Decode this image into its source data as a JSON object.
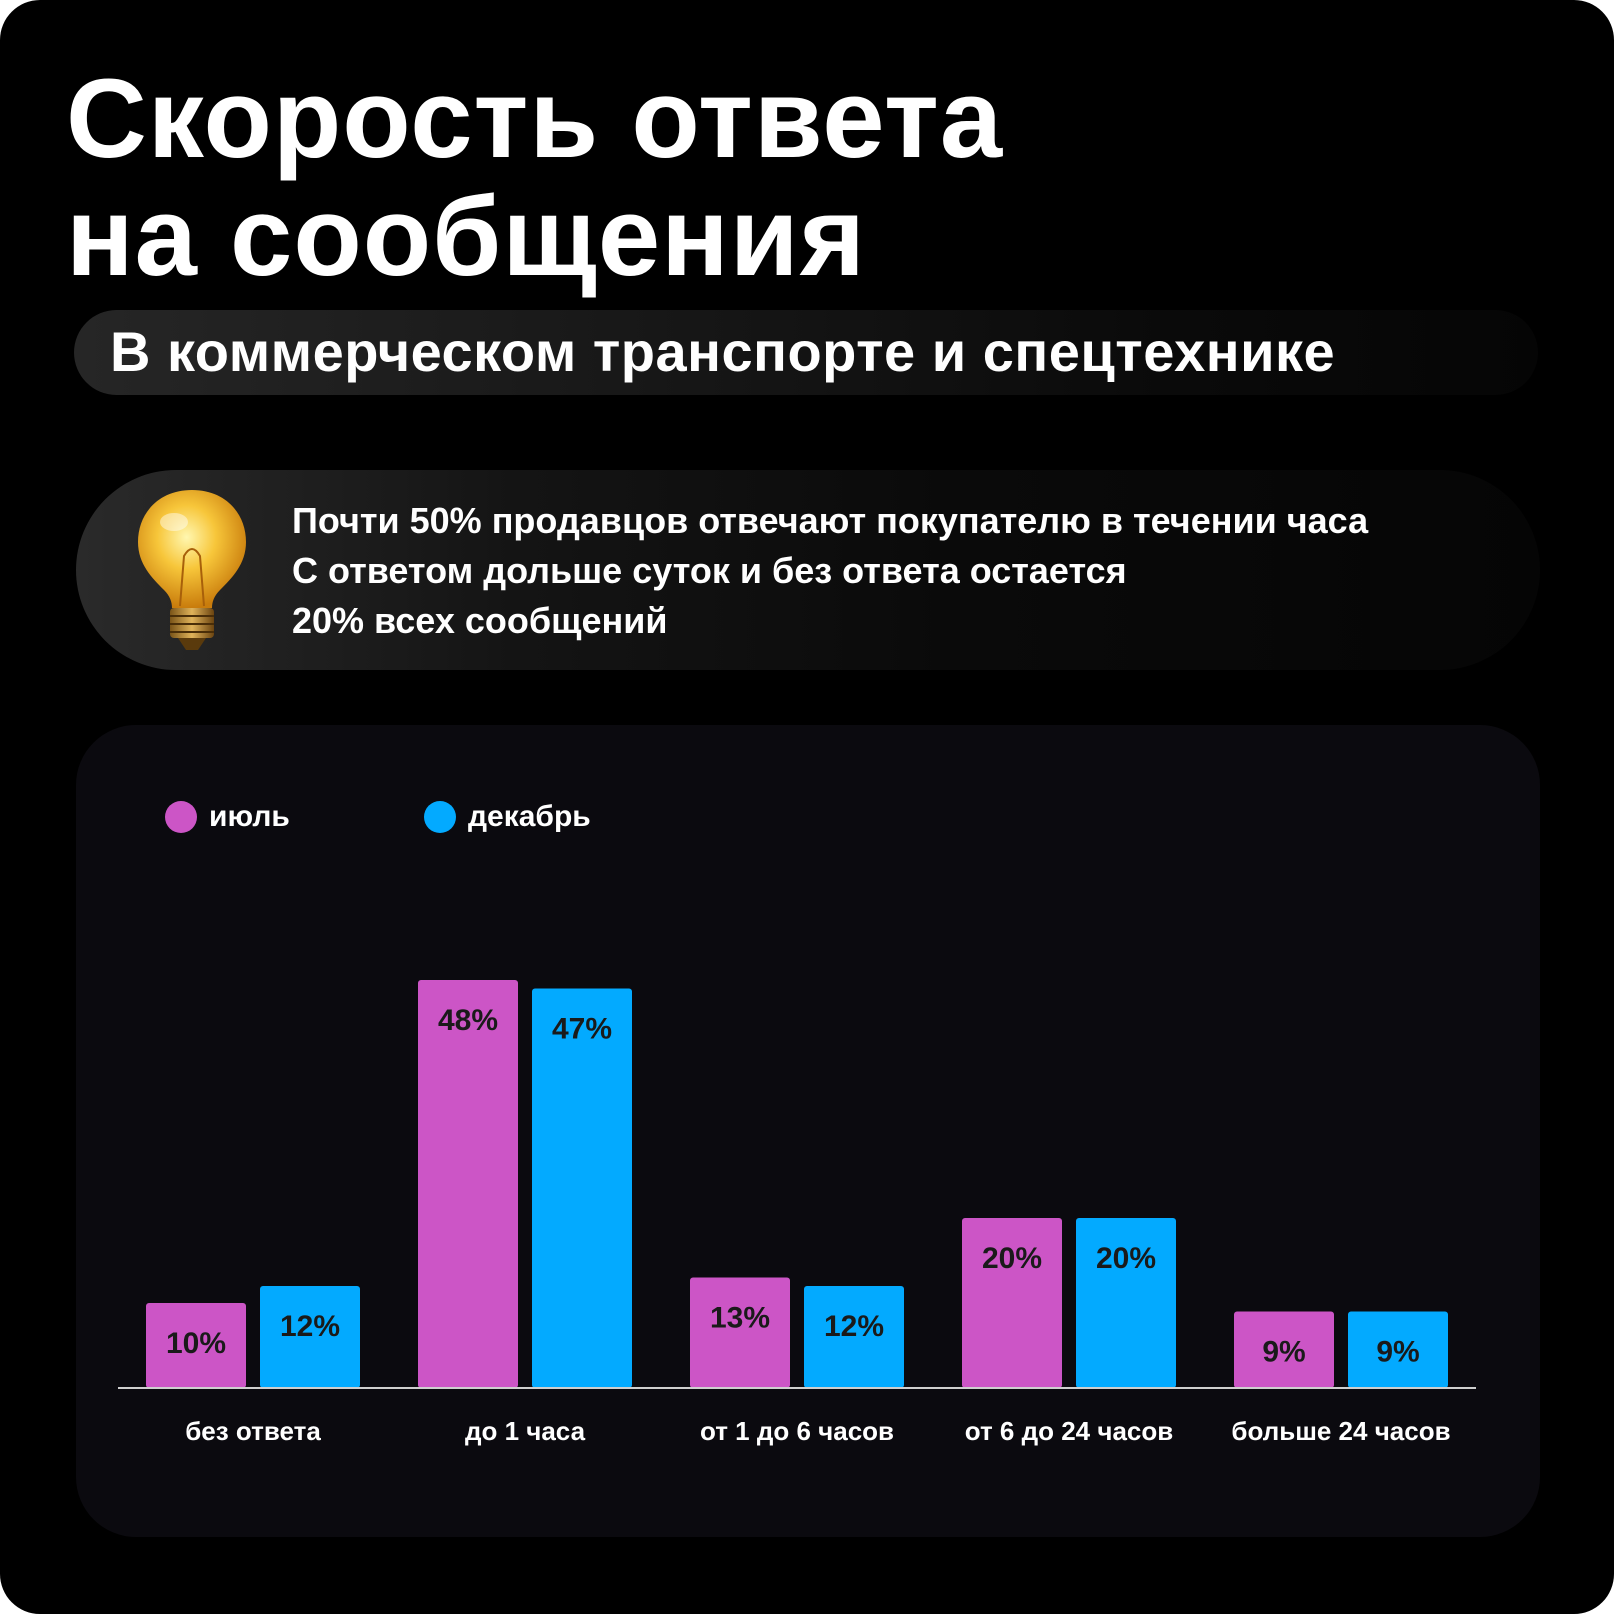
{
  "colors": {
    "background": "#000000",
    "chart_panel": "#0b0a0f",
    "july": "#cc55c6",
    "december": "#03aaff",
    "text": "#ffffff",
    "value_label": "#1a1a1a"
  },
  "header": {
    "title_line1": "Скорость ответа",
    "title_line2": "на сообщения",
    "subtitle": "В коммерческом транспорте и спецтехнике"
  },
  "info": {
    "icon": "light-bulb-icon",
    "line1": "Почти 50% продавцов отвечают покупателю в течении часа",
    "line2": "С ответом дольше суток и без ответа остается",
    "line3": "20% всех сообщений"
  },
  "chart_data": {
    "type": "bar",
    "title": "",
    "xlabel": "",
    "ylabel": "",
    "ylim": [
      0,
      50
    ],
    "grid": false,
    "legend_position": "top-left",
    "categories": [
      "без ответа",
      "до 1 часа",
      "от 1 до 6 часов",
      "от 6 до 24 часов",
      "больше 24 часов"
    ],
    "series": [
      {
        "name": "июль",
        "color": "#cc55c6",
        "values": [
          10,
          48,
          13,
          20,
          9
        ],
        "labels": [
          "10%",
          "48%",
          "13%",
          "20%",
          "9%"
        ]
      },
      {
        "name": "декабрь",
        "color": "#03aaff",
        "values": [
          12,
          47,
          12,
          20,
          9
        ],
        "labels": [
          "12%",
          "47%",
          "12%",
          "20%",
          "9%"
        ]
      }
    ]
  }
}
